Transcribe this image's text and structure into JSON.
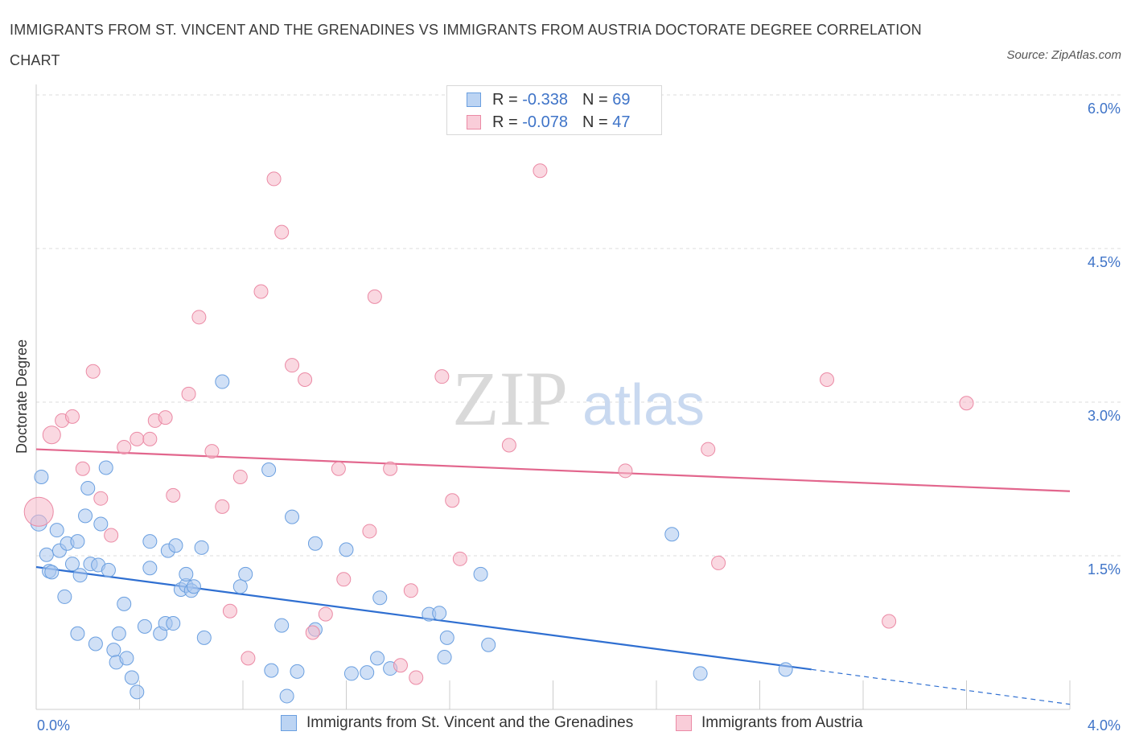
{
  "title": "IMMIGRANTS FROM ST. VINCENT AND THE GRENADINES VS IMMIGRANTS FROM AUSTRIA DOCTORATE DEGREE CORRELATION CHART",
  "source": "Source: ZipAtlas.com",
  "watermark": {
    "zip": "ZIP",
    "atlas": "atlas"
  },
  "legend": {
    "rows": [
      {
        "r_label": "R =",
        "r_value": "-0.338",
        "n_label": "N =",
        "n_value": "69",
        "color": "#a9c6ee"
      },
      {
        "r_label": "R =",
        "r_value": "-0.078",
        "n_label": "N =",
        "n_value": "47",
        "color": "#f5b8c9"
      }
    ]
  },
  "bottom_legend": {
    "items": [
      {
        "label": "Immigrants from St. Vincent and the Grenadines",
        "color": "#a9c6ee"
      },
      {
        "label": "Immigrants from Austria",
        "color": "#f5b8c9"
      }
    ]
  },
  "chart_data": {
    "type": "scatter",
    "ylabel": "Doctorate Degree",
    "xlabel": "",
    "xlim": [
      0,
      4.0
    ],
    "ylim": [
      0,
      6.0
    ],
    "x_tick_labels": [
      "0.0%",
      "4.0%"
    ],
    "y_tick_labels": [
      "1.5%",
      "3.0%",
      "4.5%",
      "6.0%"
    ],
    "y_ticks": [
      1.5,
      3.0,
      4.5,
      6.0
    ],
    "grid": "horizontal dashed",
    "colors": {
      "blue": "#6a9fe0",
      "blue_fill": "#a9c6ee",
      "blue_line": "#2f6fd1",
      "pink": "#eb8aa5",
      "pink_fill": "#f5b8c9",
      "pink_line": "#e2668d",
      "tick_text": "#3f74c8"
    },
    "series": [
      {
        "name": "Immigrants from St. Vincent and the Grenadines",
        "trend": {
          "x0": 0.0,
          "y0": 1.39,
          "x1": 3.0,
          "y1": 0.39,
          "dash_to_x": 4.0,
          "dash_to_y": 0.05
        },
        "points": [
          [
            0.01,
            1.82
          ],
          [
            0.02,
            2.27
          ],
          [
            0.04,
            1.51
          ],
          [
            0.05,
            1.35
          ],
          [
            0.06,
            1.34
          ],
          [
            0.08,
            1.75
          ],
          [
            0.09,
            1.55
          ],
          [
            0.11,
            1.1
          ],
          [
            0.12,
            1.62
          ],
          [
            0.14,
            1.42
          ],
          [
            0.16,
            1.64
          ],
          [
            0.16,
            0.74
          ],
          [
            0.17,
            1.31
          ],
          [
            0.19,
            1.89
          ],
          [
            0.2,
            2.16
          ],
          [
            0.21,
            1.42
          ],
          [
            0.23,
            0.64
          ],
          [
            0.24,
            1.41
          ],
          [
            0.25,
            1.81
          ],
          [
            0.27,
            2.36
          ],
          [
            0.28,
            1.36
          ],
          [
            0.3,
            0.58
          ],
          [
            0.31,
            0.46
          ],
          [
            0.32,
            0.74
          ],
          [
            0.34,
            1.03
          ],
          [
            0.35,
            0.5
          ],
          [
            0.37,
            0.31
          ],
          [
            0.39,
            0.17
          ],
          [
            0.42,
            0.81
          ],
          [
            0.44,
            1.38
          ],
          [
            0.44,
            1.64
          ],
          [
            0.48,
            0.74
          ],
          [
            0.5,
            0.84
          ],
          [
            0.51,
            1.55
          ],
          [
            0.53,
            0.84
          ],
          [
            0.54,
            1.6
          ],
          [
            0.56,
            1.17
          ],
          [
            0.58,
            1.21
          ],
          [
            0.58,
            1.32
          ],
          [
            0.6,
            1.16
          ],
          [
            0.61,
            1.2
          ],
          [
            0.64,
            1.58
          ],
          [
            0.65,
            0.7
          ],
          [
            0.72,
            3.2
          ],
          [
            0.79,
            1.2
          ],
          [
            0.81,
            1.32
          ],
          [
            0.9,
            2.34
          ],
          [
            0.91,
            0.38
          ],
          [
            0.95,
            0.82
          ],
          [
            0.97,
            0.13
          ],
          [
            0.99,
            1.88
          ],
          [
            1.01,
            0.37
          ],
          [
            1.08,
            1.62
          ],
          [
            1.08,
            0.78
          ],
          [
            1.2,
            1.56
          ],
          [
            1.22,
            0.35
          ],
          [
            1.28,
            0.36
          ],
          [
            1.32,
            0.5
          ],
          [
            1.33,
            1.09
          ],
          [
            1.37,
            0.4
          ],
          [
            1.52,
            0.93
          ],
          [
            1.56,
            0.94
          ],
          [
            1.58,
            0.51
          ],
          [
            1.59,
            0.7
          ],
          [
            1.72,
            1.32
          ],
          [
            1.75,
            0.63
          ],
          [
            2.46,
            1.71
          ],
          [
            2.57,
            0.35
          ],
          [
            2.9,
            0.39
          ]
        ]
      },
      {
        "name": "Immigrants from Austria",
        "trend": {
          "x0": 0.0,
          "y0": 2.54,
          "x1": 4.0,
          "y1": 2.13
        },
        "points": [
          [
            0.01,
            1.93
          ],
          [
            0.06,
            2.68
          ],
          [
            0.1,
            2.82
          ],
          [
            0.14,
            2.86
          ],
          [
            0.18,
            2.35
          ],
          [
            0.22,
            3.3
          ],
          [
            0.25,
            2.06
          ],
          [
            0.29,
            1.7
          ],
          [
            0.34,
            2.56
          ],
          [
            0.39,
            2.64
          ],
          [
            0.44,
            2.64
          ],
          [
            0.46,
            2.82
          ],
          [
            0.5,
            2.85
          ],
          [
            0.53,
            2.09
          ],
          [
            0.59,
            3.08
          ],
          [
            0.63,
            3.83
          ],
          [
            0.68,
            2.52
          ],
          [
            0.72,
            1.98
          ],
          [
            0.75,
            0.96
          ],
          [
            0.79,
            2.27
          ],
          [
            0.82,
            0.5
          ],
          [
            0.87,
            4.08
          ],
          [
            0.92,
            5.18
          ],
          [
            0.95,
            4.66
          ],
          [
            0.99,
            3.36
          ],
          [
            1.04,
            3.22
          ],
          [
            1.07,
            0.75
          ],
          [
            1.12,
            0.93
          ],
          [
            1.17,
            2.35
          ],
          [
            1.19,
            1.27
          ],
          [
            1.29,
            1.74
          ],
          [
            1.31,
            4.03
          ],
          [
            1.37,
            2.35
          ],
          [
            1.41,
            0.43
          ],
          [
            1.45,
            1.16
          ],
          [
            1.47,
            0.31
          ],
          [
            1.57,
            3.25
          ],
          [
            1.61,
            2.04
          ],
          [
            1.64,
            1.47
          ],
          [
            1.83,
            2.58
          ],
          [
            1.95,
            5.26
          ],
          [
            2.28,
            2.33
          ],
          [
            2.6,
            2.54
          ],
          [
            2.64,
            1.43
          ],
          [
            3.06,
            3.22
          ],
          [
            3.3,
            0.86
          ],
          [
            3.6,
            2.99
          ]
        ]
      }
    ]
  }
}
